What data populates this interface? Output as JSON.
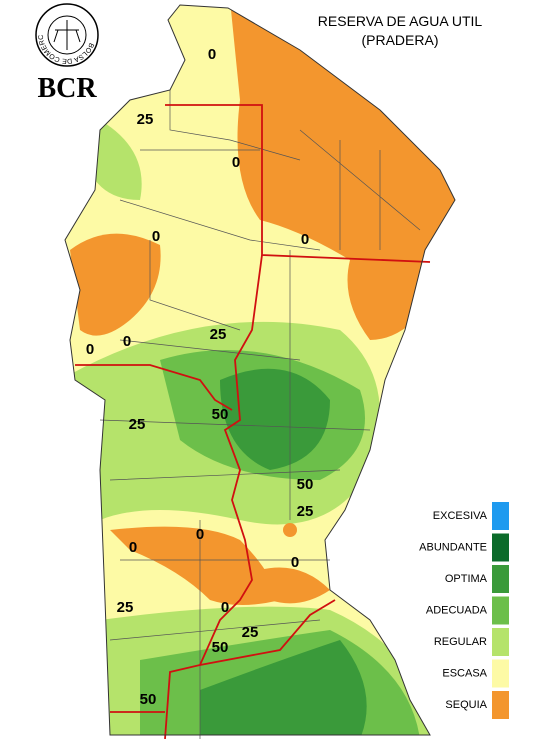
{
  "logo": {
    "ring_text": "BOLSA DE COMERCIO DE ROSARIO",
    "abbr": "BCR"
  },
  "title": [
    "RESERVA DE AGUA UTIL",
    "(PRADERA)"
  ],
  "legend": [
    {
      "label": "EXCESIVA",
      "color": "#1e9aef"
    },
    {
      "label": "ABUNDANTE",
      "color": "#0b6b2a"
    },
    {
      "label": "OPTIMA",
      "color": "#3a9a3a"
    },
    {
      "label": "ADECUADA",
      "color": "#6cbf4a"
    },
    {
      "label": "REGULAR",
      "color": "#b5e36b"
    },
    {
      "label": "ESCASA",
      "color": "#fdfaa5"
    },
    {
      "label": "SEQUIA",
      "color": "#f3962e"
    }
  ],
  "contour_labels": [
    "0",
    "0",
    "0",
    "0",
    "0",
    "0",
    "0",
    "0",
    "0",
    "0",
    "25",
    "25",
    "25",
    "25",
    "25",
    "25",
    "50",
    "50",
    "50",
    "50"
  ]
}
